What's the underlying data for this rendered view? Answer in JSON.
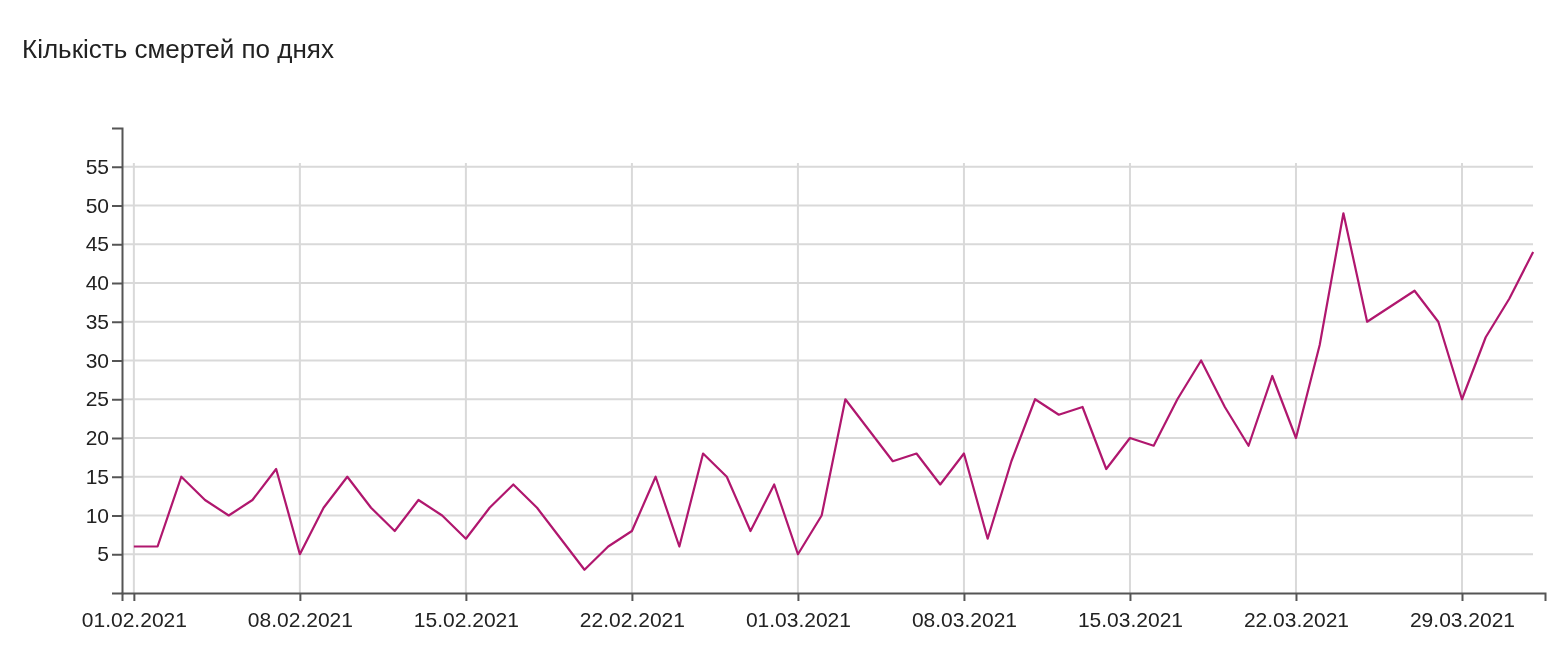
{
  "chart_data": {
    "type": "line",
    "title": "Кількість смертей по днях",
    "x": [
      "2021-02-01",
      "2021-02-02",
      "2021-02-03",
      "2021-02-04",
      "2021-02-05",
      "2021-02-06",
      "2021-02-07",
      "2021-02-08",
      "2021-02-09",
      "2021-02-10",
      "2021-02-11",
      "2021-02-12",
      "2021-02-13",
      "2021-02-14",
      "2021-02-15",
      "2021-02-16",
      "2021-02-17",
      "2021-02-18",
      "2021-02-19",
      "2021-02-20",
      "2021-02-21",
      "2021-02-22",
      "2021-02-23",
      "2021-02-24",
      "2021-02-25",
      "2021-02-26",
      "2021-02-27",
      "2021-02-28",
      "2021-03-01",
      "2021-03-02",
      "2021-03-03",
      "2021-03-04",
      "2021-03-05",
      "2021-03-06",
      "2021-03-07",
      "2021-03-08",
      "2021-03-09",
      "2021-03-10",
      "2021-03-11",
      "2021-03-12",
      "2021-03-13",
      "2021-03-14",
      "2021-03-15",
      "2021-03-16",
      "2021-03-17",
      "2021-03-18",
      "2021-03-19",
      "2021-03-20",
      "2021-03-21",
      "2021-03-22",
      "2021-03-23",
      "2021-03-24",
      "2021-03-25",
      "2021-03-26",
      "2021-03-27",
      "2021-03-28",
      "2021-03-29",
      "2021-03-30",
      "2021-03-31",
      "2021-04-01"
    ],
    "series": [
      {
        "color": "#b0176e",
        "values": [
          6,
          6,
          15,
          12,
          10,
          12,
          16,
          5,
          11,
          15,
          11,
          8,
          12,
          10,
          7,
          11,
          14,
          11,
          7,
          3,
          6,
          8,
          15,
          6,
          18,
          15,
          8,
          14,
          5,
          10,
          25,
          21,
          17,
          18,
          14,
          18,
          7,
          17,
          25,
          23,
          24,
          16,
          20,
          19,
          25,
          30,
          24,
          19,
          28,
          20,
          32,
          49,
          35,
          37,
          39,
          35,
          25,
          33,
          38,
          44
        ]
      }
    ],
    "xlim": [
      "2021-01-31T12:00",
      "2021-04-01T12:00"
    ],
    "xticks": [
      {
        "value": "2021-02-01",
        "label": "01.02.2021"
      },
      {
        "value": "2021-02-08",
        "label": "08.02.2021"
      },
      {
        "value": "2021-02-15",
        "label": "15.02.2021"
      },
      {
        "value": "2021-02-22",
        "label": "22.02.2021"
      },
      {
        "value": "2021-03-01",
        "label": "01.03.2021"
      },
      {
        "value": "2021-03-08",
        "label": "08.03.2021"
      },
      {
        "value": "2021-03-15",
        "label": "15.03.2021"
      },
      {
        "value": "2021-03-22",
        "label": "22.03.2021"
      },
      {
        "value": "2021-03-29",
        "label": "29.03.2021"
      }
    ],
    "ylim": [
      0,
      60
    ],
    "yticks": [
      5,
      10,
      15,
      20,
      25,
      30,
      35,
      40,
      45,
      50,
      55
    ],
    "grid": true,
    "marker": "none",
    "line_style": "solid"
  }
}
